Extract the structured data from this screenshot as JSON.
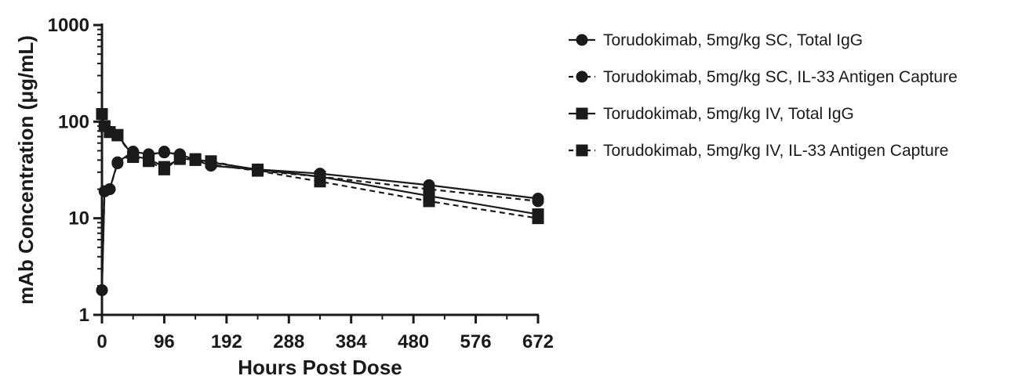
{
  "chart_data": {
    "type": "line",
    "xlabel": "Hours Post Dose",
    "ylabel": "mAb Concentration (μg/mL)",
    "xlim": [
      0,
      672
    ],
    "ylim": [
      1,
      1000
    ],
    "yscale": "log",
    "xticks": [
      0,
      96,
      192,
      288,
      384,
      480,
      576,
      672
    ],
    "xtick_labels": [
      "0",
      "96",
      "192",
      "288",
      "384",
      "480",
      "576",
      "672"
    ],
    "yticks": [
      1,
      10,
      100,
      1000
    ],
    "ytick_labels": [
      "1",
      "10",
      "100",
      "1000"
    ],
    "legend_position": "right",
    "series": [
      {
        "name": "Torudokimab, 5mg/kg SC, Total IgG",
        "marker": "circle",
        "line": "solid",
        "x": [
          0,
          4,
          12,
          24,
          48,
          72,
          96,
          120,
          168,
          240,
          336,
          504,
          672
        ],
        "y": [
          1.8,
          19,
          20,
          38,
          49,
          46,
          48,
          46,
          35,
          32,
          29,
          22,
          16
        ]
      },
      {
        "name": "Torudokimab, 5mg/kg SC, IL-33 Antigen Capture",
        "marker": "circle",
        "line": "dashed",
        "x": [
          0,
          4,
          12,
          24,
          48,
          72,
          96,
          120,
          168,
          240,
          336,
          504,
          672
        ],
        "y": [
          1.8,
          19,
          20,
          37,
          47,
          45,
          49,
          45,
          36,
          31,
          27,
          20,
          15
        ]
      },
      {
        "name": "Torudokimab, 5mg/kg IV, Total IgG",
        "marker": "square",
        "line": "solid",
        "x": [
          0,
          4,
          12,
          24,
          48,
          72,
          96,
          120,
          144,
          168,
          240,
          336,
          504,
          672
        ],
        "y": [
          120,
          90,
          78,
          73,
          44,
          41,
          34,
          41,
          41,
          38,
          32,
          27,
          17,
          11
        ]
      },
      {
        "name": "Torudokimab, 5mg/kg IV, IL-33 Antigen Capture",
        "marker": "square",
        "line": "dashed",
        "x": [
          0,
          4,
          12,
          24,
          48,
          72,
          96,
          120,
          144,
          168,
          240,
          336,
          504,
          672
        ],
        "y": [
          120,
          90,
          78,
          72,
          43,
          39,
          32,
          42,
          40,
          39,
          31,
          24,
          15,
          10
        ]
      }
    ]
  }
}
